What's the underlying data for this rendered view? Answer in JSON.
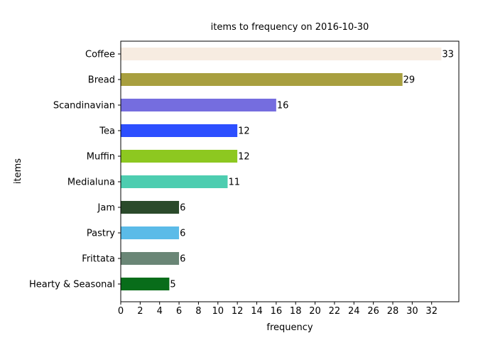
{
  "chart_data": {
    "type": "bar",
    "orientation": "horizontal",
    "title": "items to frequency on 2016-10-30",
    "xlabel": "frequency",
    "ylabel": "items",
    "xlim": [
      0,
      34.8
    ],
    "xticks": [
      0,
      2,
      4,
      6,
      8,
      10,
      12,
      14,
      16,
      18,
      20,
      22,
      24,
      26,
      28,
      30,
      32
    ],
    "grid": false,
    "legend": "none",
    "categories": [
      "Coffee",
      "Bread",
      "Scandinavian",
      "Tea",
      "Muffin",
      "Medialuna",
      "Jam",
      "Pastry",
      "Frittata",
      "Hearty & Seasonal"
    ],
    "values": [
      33,
      29,
      16,
      12,
      12,
      11,
      6,
      6,
      6,
      5
    ],
    "colors": [
      "#f7ece1",
      "#a89f3f",
      "#756ddf",
      "#2d4fff",
      "#8dc820",
      "#4dcdb0",
      "#2b4a2b",
      "#5bbbe8",
      "#6a8676",
      "#086d1a"
    ]
  }
}
